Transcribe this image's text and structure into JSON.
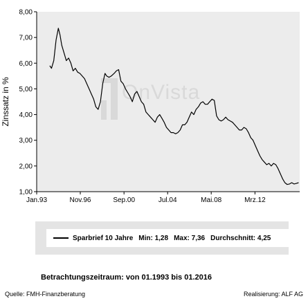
{
  "chart_data": {
    "type": "line",
    "ylabel": "Zinssatz in %",
    "y_ticks": [
      "8,00",
      "7,00",
      "6,00",
      "5,00",
      "4,00",
      "3,00",
      "2,00",
      "1,00"
    ],
    "x_ticks": [
      "Jan.93",
      "Nov.96",
      "Sep.00",
      "Jul.04",
      "Mai.08",
      "Mrz.12"
    ],
    "ylim": [
      1,
      8
    ],
    "xlim": [
      1993.0,
      2016.1
    ],
    "grid": false,
    "series": [
      {
        "name": "Sparbrief 10 Jahre",
        "color": "#000000",
        "x": [
          1994.15,
          1994.3,
          1994.5,
          1994.7,
          1994.9,
          1995.05,
          1995.2,
          1995.4,
          1995.6,
          1995.8,
          1996.0,
          1996.2,
          1996.4,
          1996.6,
          1996.8,
          1997.0,
          1997.2,
          1997.4,
          1997.6,
          1997.8,
          1998.0,
          1998.2,
          1998.4,
          1998.6,
          1998.8,
          1999.0,
          1999.15,
          1999.35,
          1999.55,
          1999.8,
          2000.0,
          2000.2,
          2000.4,
          2000.6,
          2000.8,
          2001.0,
          2001.2,
          2001.4,
          2001.6,
          2001.8,
          2002.0,
          2002.2,
          2002.4,
          2002.6,
          2002.8,
          2003.0,
          2003.2,
          2003.4,
          2003.6,
          2003.8,
          2004.0,
          2004.2,
          2004.4,
          2004.6,
          2004.8,
          2005.0,
          2005.2,
          2005.4,
          2005.6,
          2005.8,
          2006.0,
          2006.2,
          2006.4,
          2006.6,
          2006.8,
          2007.0,
          2007.2,
          2007.4,
          2007.6,
          2007.8,
          2008.0,
          2008.2,
          2008.4,
          2008.6,
          2008.8,
          2009.0,
          2009.2,
          2009.4,
          2009.6,
          2009.8,
          2010.0,
          2010.2,
          2010.4,
          2010.6,
          2010.8,
          2011.0,
          2011.2,
          2011.4,
          2011.6,
          2011.8,
          2012.0,
          2012.2,
          2012.4,
          2012.6,
          2012.8,
          2013.0,
          2013.2,
          2013.4,
          2013.6,
          2013.8,
          2014.0,
          2014.2,
          2014.4,
          2014.6,
          2014.8,
          2015.0,
          2015.2,
          2015.4,
          2015.6,
          2015.8,
          2016.0
        ],
        "y": [
          5.9,
          5.8,
          6.1,
          6.9,
          7.36,
          7.1,
          6.7,
          6.4,
          6.1,
          6.2,
          6.0,
          5.7,
          5.8,
          5.65,
          5.6,
          5.5,
          5.4,
          5.2,
          5.0,
          4.8,
          4.6,
          4.3,
          4.2,
          4.5,
          5.2,
          5.6,
          5.5,
          5.45,
          5.5,
          5.6,
          5.7,
          5.75,
          5.3,
          5.2,
          5.0,
          4.85,
          4.7,
          4.5,
          4.8,
          4.9,
          4.7,
          4.5,
          4.4,
          4.1,
          4.0,
          3.9,
          3.8,
          3.7,
          3.9,
          4.0,
          3.85,
          3.7,
          3.5,
          3.4,
          3.3,
          3.3,
          3.25,
          3.3,
          3.4,
          3.6,
          3.6,
          3.7,
          3.9,
          4.1,
          4.0,
          4.2,
          4.3,
          4.45,
          4.5,
          4.4,
          4.4,
          4.5,
          4.6,
          4.55,
          3.95,
          3.8,
          3.75,
          3.8,
          3.9,
          3.8,
          3.75,
          3.7,
          3.6,
          3.5,
          3.4,
          3.4,
          3.5,
          3.45,
          3.3,
          3.1,
          3.0,
          2.8,
          2.6,
          2.4,
          2.25,
          2.15,
          2.05,
          2.1,
          2.0,
          2.1,
          2.05,
          1.9,
          1.7,
          1.5,
          1.35,
          1.28,
          1.3,
          1.35,
          1.3,
          1.32,
          1.35
        ]
      }
    ],
    "legend": {
      "placement": "bottom",
      "name": "Sparbrief 10 Jahre",
      "min_label": "Min:",
      "min": "1,28",
      "max_label": "Max:",
      "max": "7,36",
      "avg_label": "Durchschnitt:",
      "avg": "4,25"
    }
  },
  "watermark": "OnVista",
  "period_text": "Betrachtungszeitraum: von 01.1993 bis 01.2016",
  "footer": {
    "source": "Quelle: FMH-Finanzberatung",
    "credit": "Realisierung: ALF AG"
  }
}
